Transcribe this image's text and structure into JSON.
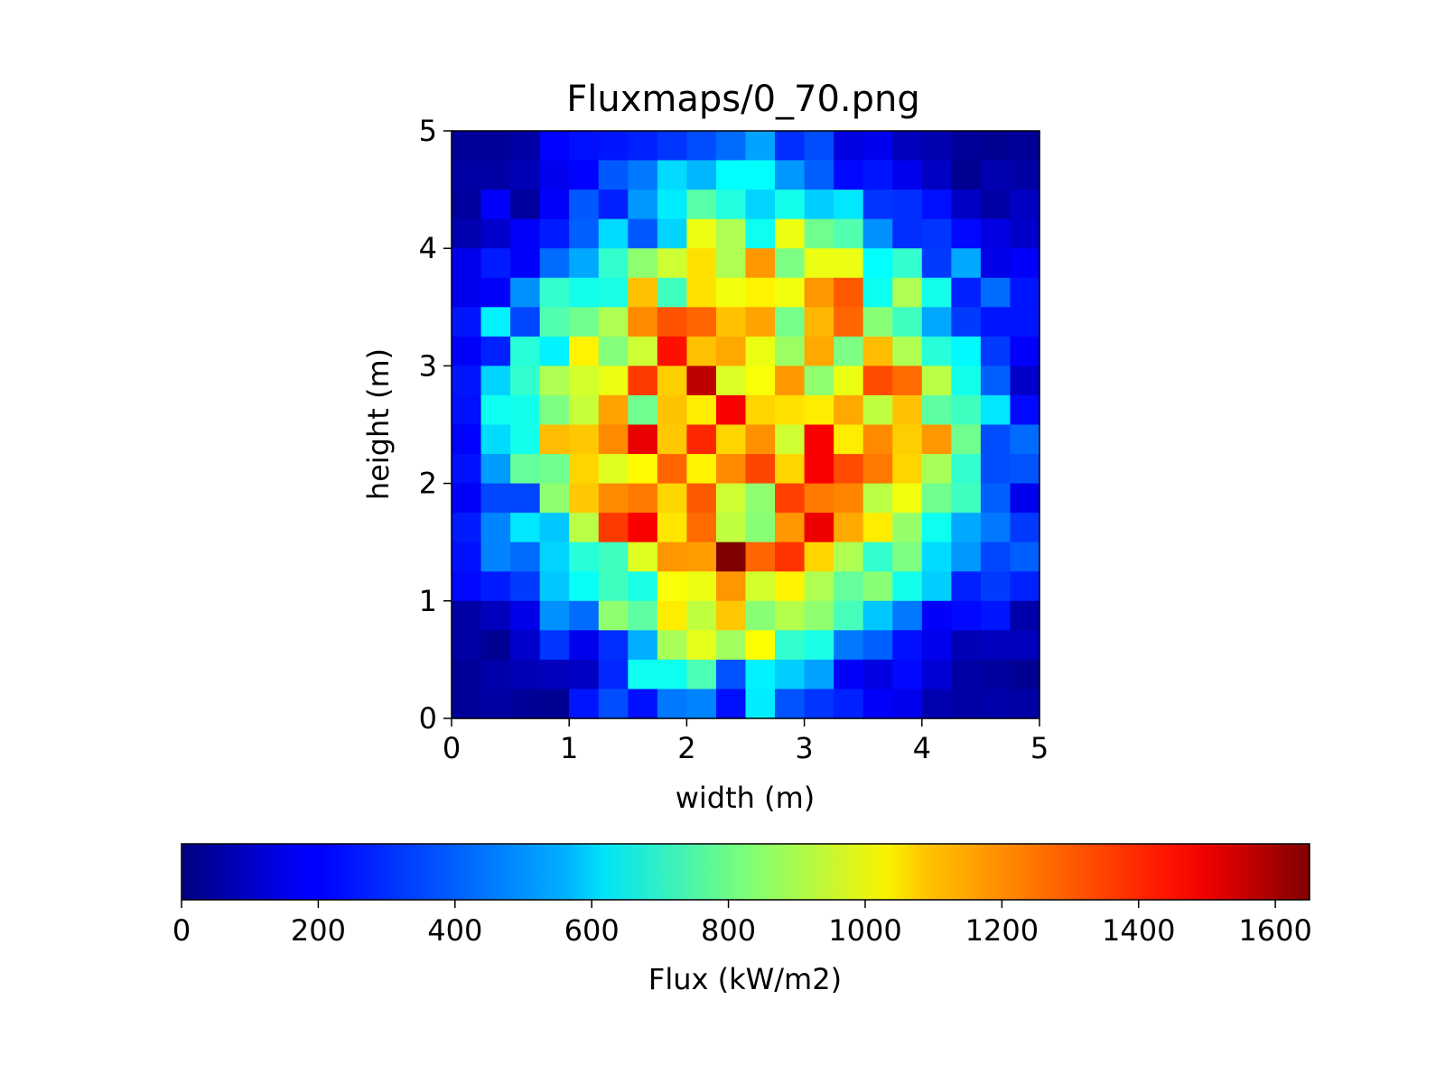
{
  "chart_data": {
    "type": "heatmap",
    "title": "Fluxmaps/0_70.png",
    "xlabel": "width (m)",
    "ylabel": "height (m)",
    "xlim": [
      0,
      5
    ],
    "ylim": [
      0,
      5
    ],
    "xticks": [
      0,
      1,
      2,
      3,
      4,
      5
    ],
    "yticks": [
      0,
      1,
      2,
      3,
      4,
      5
    ],
    "grid": false,
    "colormap": "jet",
    "colorbar": {
      "label": "Flux (kW/m2)",
      "orientation": "horizontal",
      "placement": "bottom",
      "range": [
        0,
        1650
      ],
      "ticks": [
        0,
        200,
        400,
        600,
        800,
        1000,
        1200,
        1400,
        1600
      ]
    },
    "grid_size": [
      20,
      20
    ],
    "cell_size_m": 0.25,
    "z_rows_top_to_bottom": [
      [
        40,
        40,
        60,
        210,
        230,
        240,
        260,
        290,
        330,
        380,
        470,
        280,
        330,
        160,
        180,
        100,
        80,
        40,
        30,
        40
      ],
      [
        60,
        60,
        90,
        180,
        210,
        350,
        400,
        560,
        500,
        620,
        620,
        450,
        360,
        220,
        240,
        180,
        110,
        30,
        80,
        60
      ],
      [
        50,
        200,
        50,
        200,
        350,
        260,
        450,
        590,
        760,
        670,
        550,
        650,
        540,
        580,
        290,
        280,
        230,
        110,
        60,
        110
      ],
      [
        80,
        120,
        200,
        250,
        360,
        560,
        350,
        550,
        1000,
        900,
        640,
        1000,
        800,
        750,
        440,
        280,
        290,
        220,
        160,
        120
      ],
      [
        180,
        250,
        200,
        380,
        480,
        700,
        850,
        950,
        1080,
        900,
        1200,
        820,
        1000,
        1000,
        620,
        700,
        300,
        480,
        170,
        200
      ],
      [
        180,
        200,
        440,
        700,
        650,
        660,
        1130,
        720,
        1080,
        1010,
        1050,
        1010,
        1200,
        1300,
        640,
        900,
        650,
        260,
        380,
        240
      ],
      [
        240,
        600,
        320,
        750,
        800,
        900,
        1220,
        1310,
        1280,
        1130,
        1180,
        810,
        1150,
        1280,
        840,
        720,
        480,
        300,
        240,
        240
      ],
      [
        200,
        260,
        680,
        600,
        1050,
        830,
        950,
        1420,
        1130,
        1170,
        1000,
        870,
        1170,
        820,
        1140,
        900,
        680,
        610,
        300,
        200
      ],
      [
        240,
        550,
        700,
        900,
        960,
        1000,
        1350,
        1110,
        1550,
        970,
        1020,
        1200,
        850,
        1000,
        1320,
        1270,
        920,
        650,
        360,
        120
      ],
      [
        230,
        640,
        650,
        820,
        940,
        1180,
        800,
        1130,
        1060,
        1450,
        1100,
        1080,
        1060,
        1170,
        930,
        1130,
        770,
        720,
        580,
        220
      ],
      [
        210,
        560,
        650,
        1140,
        1120,
        1220,
        1480,
        1120,
        1380,
        1100,
        1210,
        950,
        1450,
        1060,
        1220,
        1110,
        1200,
        800,
        330,
        380
      ],
      [
        230,
        460,
        780,
        800,
        1100,
        980,
        1040,
        1280,
        1050,
        1220,
        1330,
        1100,
        1450,
        1320,
        1250,
        1100,
        890,
        700,
        330,
        340
      ],
      [
        200,
        320,
        320,
        850,
        1120,
        1220,
        1250,
        1100,
        1300,
        950,
        850,
        1340,
        1250,
        1230,
        920,
        1010,
        800,
        720,
        360,
        180
      ],
      [
        250,
        420,
        580,
        530,
        920,
        1350,
        1450,
        1070,
        1270,
        930,
        840,
        1200,
        1470,
        1170,
        1060,
        860,
        640,
        480,
        400,
        300
      ],
      [
        230,
        420,
        380,
        550,
        680,
        720,
        980,
        1200,
        1190,
        1650,
        1280,
        1360,
        1100,
        900,
        700,
        820,
        560,
        450,
        320,
        360
      ],
      [
        220,
        250,
        300,
        530,
        630,
        720,
        660,
        1020,
        1000,
        1200,
        960,
        1050,
        900,
        780,
        840,
        650,
        540,
        260,
        300,
        260
      ],
      [
        60,
        100,
        170,
        440,
        380,
        850,
        770,
        1060,
        930,
        1120,
        840,
        910,
        850,
        730,
        530,
        400,
        200,
        220,
        240,
        70
      ],
      [
        60,
        30,
        120,
        290,
        180,
        280,
        490,
        890,
        990,
        880,
        1030,
        700,
        660,
        400,
        360,
        230,
        180,
        90,
        100,
        100
      ],
      [
        40,
        70,
        90,
        100,
        110,
        270,
        640,
        640,
        740,
        340,
        600,
        540,
        470,
        200,
        160,
        220,
        140,
        60,
        50,
        30
      ],
      [
        40,
        60,
        40,
        30,
        240,
        330,
        230,
        400,
        420,
        230,
        590,
        340,
        290,
        260,
        200,
        180,
        80,
        60,
        70,
        60
      ]
    ]
  }
}
